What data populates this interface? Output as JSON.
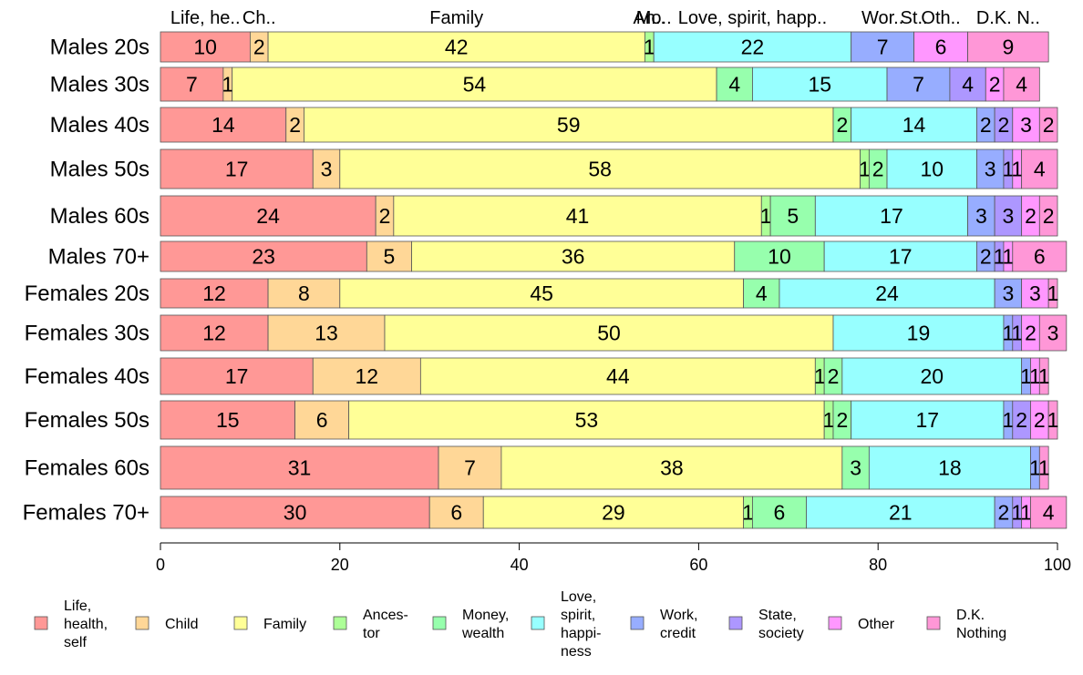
{
  "chart_data": {
    "type": "bar",
    "orientation": "horizontal",
    "stacked": true,
    "categories": [
      "Males 20s",
      "Males 30s",
      "Males 40s",
      "Males 50s",
      "Males 60s",
      "Males 70+",
      "Females 20s",
      "Females 30s",
      "Females 40s",
      "Females 50s",
      "Females 60s",
      "Females 70+"
    ],
    "series": [
      {
        "name": "Life, health, self",
        "legend_lines": [
          "Life,",
          "health,",
          "self"
        ],
        "top_label": "Life, he..",
        "color": "#ff9896",
        "values": [
          10,
          7,
          14,
          17,
          24,
          23,
          12,
          12,
          17,
          15,
          31,
          30
        ]
      },
      {
        "name": "Child",
        "legend_lines": [
          "Child"
        ],
        "top_label": "Ch..",
        "color": "#ffd797",
        "values": [
          2,
          1,
          2,
          3,
          2,
          5,
          8,
          13,
          12,
          6,
          7,
          6
        ]
      },
      {
        "name": "Family",
        "legend_lines": [
          "Family"
        ],
        "top_label": "Family",
        "color": "#ffff97",
        "values": [
          42,
          54,
          59,
          58,
          41,
          36,
          45,
          50,
          44,
          53,
          38,
          29
        ]
      },
      {
        "name": "Ancestor",
        "legend_lines": [
          "Ances-",
          "tor"
        ],
        "top_label": "An..",
        "color": "#adff97",
        "values": [
          1,
          0,
          0,
          1,
          1,
          0,
          0,
          0,
          1,
          1,
          0,
          1
        ]
      },
      {
        "name": "Money, wealth",
        "legend_lines": [
          "Money,",
          "wealth"
        ],
        "top_label": "Mo..",
        "color": "#97ffad",
        "values": [
          0,
          4,
          2,
          2,
          5,
          10,
          4,
          0,
          2,
          2,
          3,
          6
        ]
      },
      {
        "name": "Love, spirit, happiness",
        "legend_lines": [
          "Love,",
          "spirit,",
          "happi-",
          "ness"
        ],
        "top_label": "Love, spirit, happ..",
        "color": "#97ffff",
        "values": [
          22,
          15,
          14,
          10,
          17,
          17,
          24,
          19,
          20,
          17,
          18,
          21
        ]
      },
      {
        "name": "Work, credit",
        "legend_lines": [
          "Work,",
          "credit"
        ],
        "top_label": "Wor..",
        "color": "#97adff",
        "values": [
          7,
          7,
          2,
          3,
          3,
          2,
          3,
          1,
          1,
          1,
          1,
          2
        ]
      },
      {
        "name": "State, society",
        "legend_lines": [
          "State,",
          "society"
        ],
        "top_label": "St..",
        "color": "#ad97ff",
        "values": [
          0,
          4,
          2,
          1,
          3,
          1,
          0,
          1,
          0,
          2,
          0,
          1
        ]
      },
      {
        "name": "Other",
        "legend_lines": [
          "Other"
        ],
        "top_label": "Oth..",
        "color": "#ff97ff",
        "values": [
          6,
          2,
          3,
          1,
          2,
          1,
          3,
          2,
          1,
          2,
          0,
          1
        ]
      },
      {
        "name": "D.K. Nothing",
        "legend_lines": [
          "D.K.",
          "Nothing"
        ],
        "top_label": "D.K. N..",
        "color": "#ff97d7",
        "values": [
          9,
          4,
          2,
          4,
          2,
          6,
          1,
          3,
          1,
          1,
          1,
          4
        ]
      }
    ],
    "xlim": [
      0,
      100
    ],
    "x_ticks": [
      0,
      20,
      40,
      60,
      80,
      100
    ],
    "xlabel": "",
    "ylabel": "",
    "title": "",
    "grid": false,
    "legend_position": "bottom"
  }
}
